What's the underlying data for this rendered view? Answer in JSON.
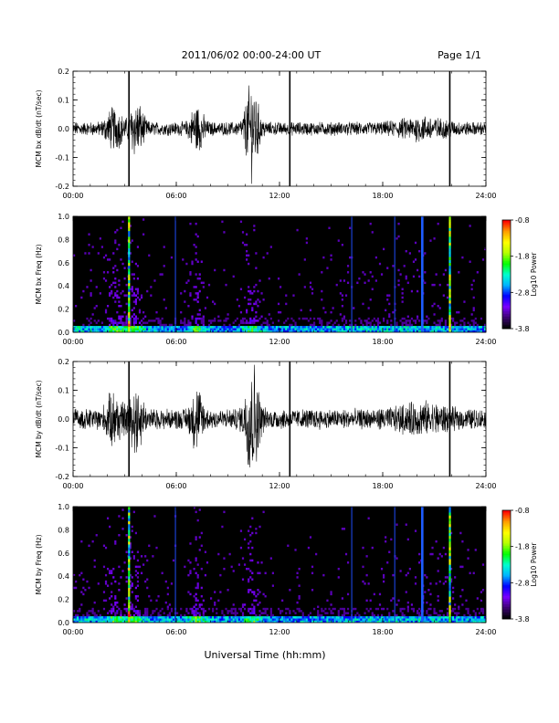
{
  "header": {
    "date_range": "2011/06/02  00:00-24:00 UT",
    "page": "Page 1/1"
  },
  "x_axis": {
    "label": "Universal Time (hh:mm)",
    "ticks": [
      "00:00",
      "06:00",
      "12:00",
      "18:00",
      "24:00"
    ],
    "range_hours": [
      0,
      24
    ]
  },
  "colorbar": {
    "label": "Log10 Power",
    "ticks": [
      "-0.8",
      "-1.8",
      "-2.8",
      "-3.8"
    ],
    "range": [
      -3.8,
      -0.8
    ],
    "colors": [
      "#000000",
      "#3a0070",
      "#7a00ff",
      "#0000ff",
      "#00b4ff",
      "#00ffd0",
      "#00ff00",
      "#b4ff00",
      "#ffff00",
      "#ffa000",
      "#ff0000"
    ]
  },
  "chart_data": [
    {
      "type": "line",
      "ylabel": "MCM bx dB/dt (nT/sec)",
      "ylim": [
        -0.2,
        0.2
      ],
      "yticks": [
        "0.2",
        "0.1",
        "0.0",
        "-0.1",
        "-0.2"
      ],
      "xlim": [
        0,
        24
      ],
      "baseline_amplitude": 0.02,
      "bursts": [
        {
          "t": 2.4,
          "w": 0.5,
          "a": 0.05
        },
        {
          "t": 3.7,
          "w": 0.4,
          "a": 0.07
        },
        {
          "t": 7.2,
          "w": 0.4,
          "a": 0.06
        },
        {
          "t": 10.4,
          "w": 0.4,
          "a": 0.13
        },
        {
          "t": 20.3,
          "w": 1.5,
          "a": 0.02
        }
      ],
      "spikes": [
        {
          "t": 3.25,
          "min": -0.2,
          "max": 0.2
        },
        {
          "t": 12.6,
          "min": -0.2,
          "max": 0.2
        },
        {
          "t": 21.9,
          "min": -0.2,
          "max": 0.2
        }
      ]
    },
    {
      "type": "heatmap",
      "ylabel": "MCM bx Freq (Hz)",
      "ylim": [
        0,
        1.0
      ],
      "yticks": [
        "1.0",
        "0.8",
        "0.6",
        "0.4",
        "0.2",
        "0.0"
      ],
      "xlim": [
        0,
        24
      ],
      "zlim": [
        -3.8,
        -0.8
      ],
      "activity_hours": [
        2.5,
        3.6,
        7.2,
        10.4
      ],
      "vertical_lines": [
        {
          "t": 3.25,
          "type": "spectrum"
        },
        {
          "t": 5.95,
          "type": "blue"
        },
        {
          "t": 16.2,
          "type": "blue"
        },
        {
          "t": 18.7,
          "type": "blue"
        },
        {
          "t": 20.3,
          "type": "blue-bright"
        },
        {
          "t": 21.9,
          "type": "spectrum"
        }
      ]
    },
    {
      "type": "line",
      "ylabel": "MCM by dB/dt (nT/sec)",
      "ylim": [
        -0.2,
        0.2
      ],
      "yticks": [
        "0.2",
        "0.1",
        "0.0",
        "-0.1",
        "-0.2"
      ],
      "xlim": [
        0,
        24
      ],
      "baseline_amplitude": 0.03,
      "bursts": [
        {
          "t": 2.4,
          "w": 0.5,
          "a": 0.06
        },
        {
          "t": 3.7,
          "w": 0.4,
          "a": 0.08
        },
        {
          "t": 7.2,
          "w": 0.4,
          "a": 0.07
        },
        {
          "t": 10.4,
          "w": 0.4,
          "a": 0.16
        },
        {
          "t": 20.3,
          "w": 1.5,
          "a": 0.025
        }
      ],
      "spikes": [
        {
          "t": 3.25,
          "min": -0.2,
          "max": 0.2
        },
        {
          "t": 12.6,
          "min": -0.2,
          "max": 0.2
        },
        {
          "t": 21.9,
          "min": -0.2,
          "max": 0.2
        }
      ]
    },
    {
      "type": "heatmap",
      "ylabel": "MCM by Freq (Hz)",
      "ylim": [
        0,
        1.0
      ],
      "yticks": [
        "1.0",
        "0.8",
        "0.6",
        "0.4",
        "0.2",
        "0.0"
      ],
      "xlim": [
        0,
        24
      ],
      "zlim": [
        -3.8,
        -0.8
      ],
      "activity_hours": [
        2.5,
        3.6,
        7.2,
        10.4
      ],
      "vertical_lines": [
        {
          "t": 3.25,
          "type": "spectrum"
        },
        {
          "t": 5.95,
          "type": "blue"
        },
        {
          "t": 16.2,
          "type": "blue"
        },
        {
          "t": 18.7,
          "type": "blue"
        },
        {
          "t": 20.3,
          "type": "blue-bright"
        },
        {
          "t": 21.9,
          "type": "spectrum"
        }
      ]
    }
  ]
}
